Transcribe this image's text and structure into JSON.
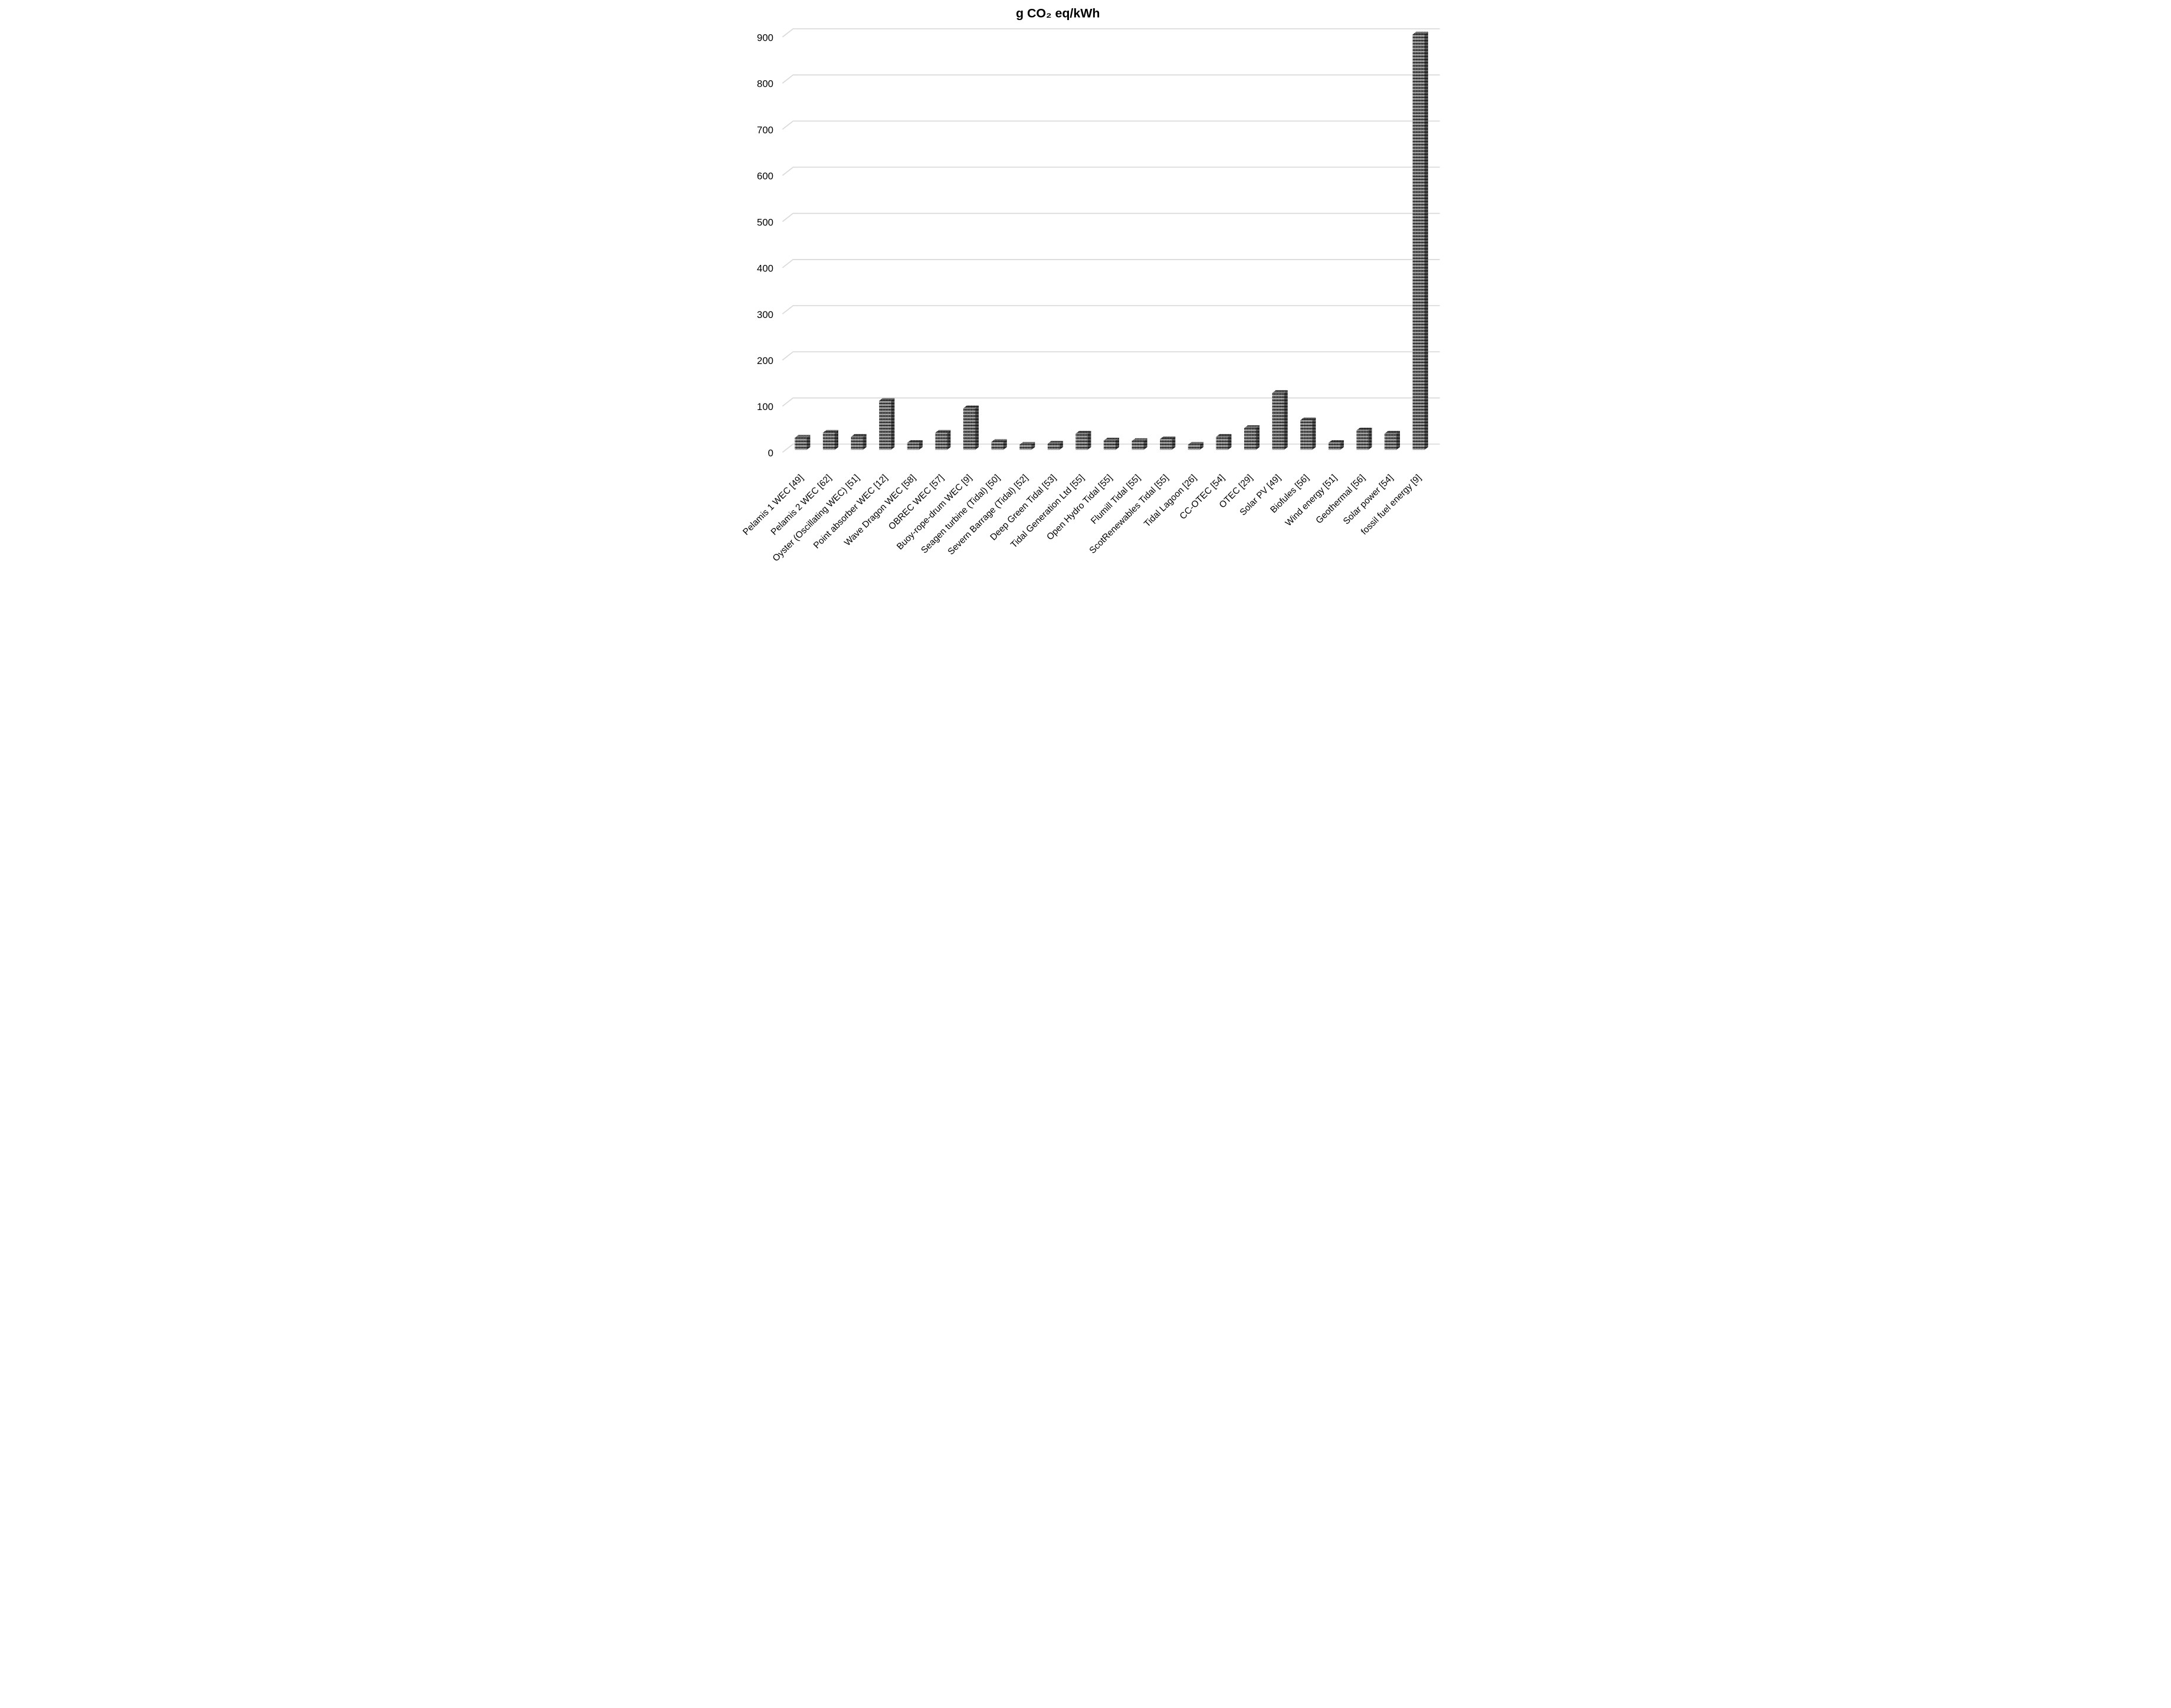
{
  "chart_data": {
    "type": "bar",
    "effect": "3d-column",
    "title": "g CO₂ eq/kWh",
    "xlabel": "",
    "ylabel": "",
    "ylim": [
      0,
      900
    ],
    "ytick_step": 100,
    "yticks": [
      0,
      100,
      200,
      300,
      400,
      500,
      600,
      700,
      800,
      900
    ],
    "grid": true,
    "legend": false,
    "categories": [
      "Pelamis 1  WEC [49]",
      "Pelamis 2  WEC [62]",
      "Oyster (Oscillating WEC) [51]",
      "Point absorber WEC [12]",
      "Wave Dragon  WEC [58]",
      "OBREC WEC [57]",
      "Buoy-rope-drum WEC [9]",
      "Seagen turbine (Tidal) [50]",
      "Severn Barrage (Tidal) [52]",
      "Deep Green Tidal [53]",
      "Tidal Generation Ltd [55]",
      "Open Hydro Tidal [55]",
      "Flumill Tidal [55]",
      "ScotRenewables Tidal [55]",
      "Tidal Lagoon [26]",
      "CC-OTEC [54]",
      "OTEC [29]",
      "Solar PV  [49]",
      "Biofules [56]",
      "Wind energy [51]",
      "Geothermal [56]",
      "Solar power [54]",
      "fossil fuel energy [9]"
    ],
    "values": [
      26,
      37,
      28,
      106,
      15,
      37,
      90,
      17,
      11,
      13,
      35,
      20,
      19,
      23,
      11,
      28,
      47,
      123,
      64,
      15,
      42,
      35,
      900
    ],
    "colors": {
      "background": "#ffffff",
      "gridline": "#d9d9d9",
      "text": "#000000",
      "bar_base": "#0f0f0f",
      "bar_weave_light": "#ececec",
      "bar_weave_mid": "#8a8a8a",
      "bar_weave_dark": "#333333"
    }
  }
}
